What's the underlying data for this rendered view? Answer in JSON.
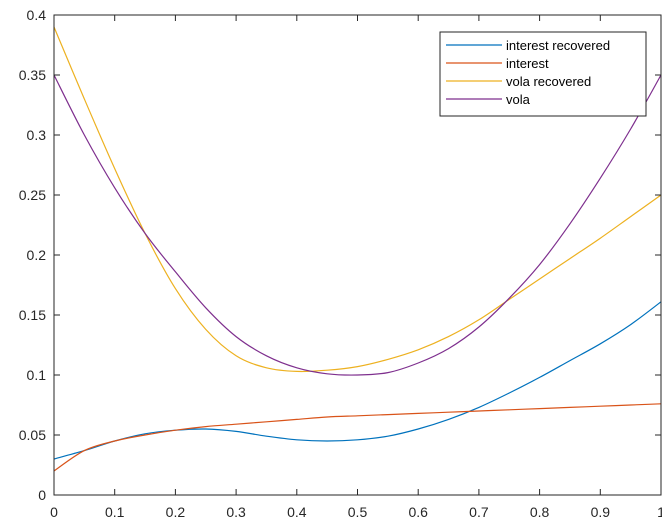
{
  "chart_data": {
    "type": "line",
    "title": "",
    "xlabel": "",
    "ylabel": "",
    "xlim": [
      0,
      1
    ],
    "ylim": [
      0,
      0.4
    ],
    "x_ticks": [
      0,
      0.1,
      0.2,
      0.3,
      0.4,
      0.5,
      0.6,
      0.7,
      0.8,
      0.9,
      1
    ],
    "x_tick_labels": [
      "0",
      "0.1",
      "0.2",
      "0.3",
      "0.4",
      "0.5",
      "0.6",
      "0.7",
      "0.8",
      "0.9",
      "1"
    ],
    "y_ticks": [
      0,
      0.05,
      0.1,
      0.15,
      0.2,
      0.25,
      0.3,
      0.35,
      0.4
    ],
    "y_tick_labels": [
      "0",
      "0.05",
      "0.1",
      "0.15",
      "0.2",
      "0.25",
      "0.3",
      "0.35",
      "0.4"
    ],
    "grid": false,
    "box": true,
    "legend_position": "top-right",
    "x": [
      0,
      0.05,
      0.1,
      0.15,
      0.2,
      0.25,
      0.3,
      0.35,
      0.4,
      0.45,
      0.5,
      0.55,
      0.6,
      0.65,
      0.7,
      0.75,
      0.8,
      0.85,
      0.9,
      0.95,
      1
    ],
    "series": [
      {
        "name": "interest recovered",
        "color": "#0072BD",
        "values": [
          0.03,
          0.037,
          0.045,
          0.051,
          0.054,
          0.055,
          0.053,
          0.049,
          0.046,
          0.045,
          0.046,
          0.049,
          0.055,
          0.063,
          0.073,
          0.085,
          0.098,
          0.112,
          0.126,
          0.142,
          0.161
        ]
      },
      {
        "name": "interest",
        "color": "#D95319",
        "values": [
          0.02,
          0.037,
          0.045,
          0.05,
          0.054,
          0.057,
          0.059,
          0.061,
          0.063,
          0.065,
          0.066,
          0.067,
          0.068,
          0.069,
          0.07,
          0.071,
          0.072,
          0.073,
          0.074,
          0.075,
          0.076
        ]
      },
      {
        "name": "vola recovered",
        "color": "#EDB120",
        "values": [
          0.39,
          0.33,
          0.272,
          0.218,
          0.172,
          0.138,
          0.116,
          0.106,
          0.103,
          0.104,
          0.107,
          0.113,
          0.121,
          0.132,
          0.146,
          0.163,
          0.18,
          0.197,
          0.214,
          0.232,
          0.25
        ]
      },
      {
        "name": "vola",
        "color": "#7E2F8E",
        "values": [
          0.35,
          0.3,
          0.256,
          0.218,
          0.186,
          0.156,
          0.132,
          0.116,
          0.106,
          0.101,
          0.1,
          0.102,
          0.11,
          0.122,
          0.14,
          0.164,
          0.192,
          0.226,
          0.264,
          0.305,
          0.35
        ]
      }
    ]
  }
}
